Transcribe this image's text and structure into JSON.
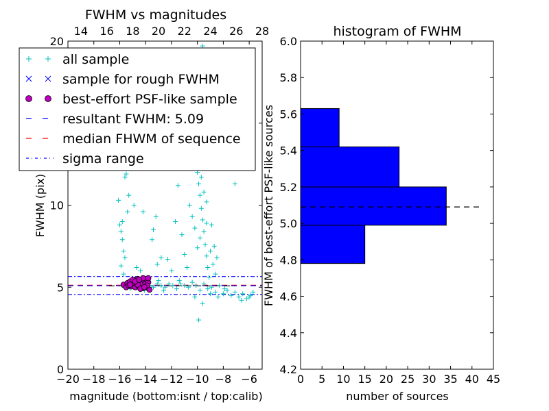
{
  "chart_data": [
    {
      "type": "scatter",
      "title": "FWHM vs magnitudes",
      "xlabel": "magnitude (bottom:isnt / top:calib)",
      "ylabel": "FWHM (pix)",
      "xlim": [
        -20,
        -5
      ],
      "ylim": [
        0,
        20
      ],
      "top_xlim": [
        13,
        28
      ],
      "x_ticks": [
        "−20",
        "−18",
        "−16",
        "−14",
        "−12",
        "−10",
        "−8",
        "−6"
      ],
      "x_tick_values": [
        -20,
        -18,
        -16,
        -14,
        -12,
        -10,
        -8,
        -6
      ],
      "top_ticks": [
        "14",
        "16",
        "18",
        "20",
        "22",
        "24",
        "26",
        "28"
      ],
      "top_tick_values": [
        14,
        16,
        18,
        20,
        22,
        24,
        26,
        28
      ],
      "y_ticks": [
        "0",
        "5",
        "10",
        "15",
        "20"
      ],
      "y_tick_values": [
        0,
        5,
        10,
        15,
        20
      ],
      "resultant_fwhm": 5.09,
      "median_fwhm": 5.12,
      "sigma_range": [
        4.55,
        5.65
      ],
      "legend": [
        {
          "label": "all sample",
          "marker": "plus",
          "color": "#00bfbf"
        },
        {
          "label": "sample for rough FWHM",
          "marker": "x",
          "color": "#0000ff"
        },
        {
          "label": "best-effort PSF-like sample",
          "marker": "circle",
          "color": "#bf00bf"
        },
        {
          "label": "resultant FWHM: 5.09",
          "marker": "dash",
          "color": "#0000ff"
        },
        {
          "label": "median FHWM of sequence",
          "marker": "dash",
          "color": "#ff0000"
        },
        {
          "label": "sigma range",
          "marker": "dashdot",
          "color": "#0000ff"
        }
      ],
      "series": [
        {
          "name": "all sample",
          "points": [
            [
              -15.8,
              5.1
            ],
            [
              -15.5,
              5.0
            ],
            [
              -15.2,
              5.3
            ],
            [
              -14.9,
              5.1
            ],
            [
              -14.6,
              5.2
            ],
            [
              -14.3,
              5.0
            ],
            [
              -14.0,
              5.2
            ],
            [
              -13.7,
              5.1
            ],
            [
              -13.4,
              5.0
            ],
            [
              -13.1,
              5.2
            ],
            [
              -12.8,
              5.1
            ],
            [
              -12.5,
              5.0
            ],
            [
              -12.2,
              5.2
            ],
            [
              -11.9,
              5.1
            ],
            [
              -11.6,
              4.9
            ],
            [
              -11.3,
              5.2
            ],
            [
              -11.0,
              5.1
            ],
            [
              -10.7,
              5.0
            ],
            [
              -10.4,
              5.3
            ],
            [
              -10.1,
              5.1
            ],
            [
              -9.8,
              4.8
            ],
            [
              -9.5,
              5.2
            ],
            [
              -9.2,
              4.9
            ],
            [
              -8.9,
              5.0
            ],
            [
              -8.6,
              4.7
            ],
            [
              -8.3,
              5.1
            ],
            [
              -8.0,
              4.6
            ],
            [
              -7.7,
              4.8
            ],
            [
              -7.4,
              4.5
            ],
            [
              -7.1,
              4.7
            ],
            [
              -6.8,
              4.4
            ],
            [
              -6.5,
              4.6
            ],
            [
              -6.2,
              4.3
            ],
            [
              -5.9,
              4.5
            ],
            [
              -16.0,
              8.8
            ],
            [
              -15.9,
              8.4
            ],
            [
              -15.8,
              7.9
            ],
            [
              -15.7,
              7.2
            ],
            [
              -15.6,
              6.8
            ],
            [
              -15.9,
              6.3
            ],
            [
              -15.7,
              5.8
            ],
            [
              -15.8,
              9.0
            ],
            [
              -16.1,
              10.3
            ],
            [
              -15.6,
              11.7
            ],
            [
              -15.5,
              11.9
            ],
            [
              -15.3,
              10.6
            ],
            [
              -15.4,
              9.6
            ],
            [
              -14.9,
              10.0
            ],
            [
              -14.2,
              9.6
            ],
            [
              -13.2,
              9.3
            ],
            [
              -13.4,
              8.5
            ],
            [
              -14.7,
              6.2
            ],
            [
              -14.4,
              6.0
            ],
            [
              -13.1,
              6.4
            ],
            [
              -12.8,
              6.8
            ],
            [
              -11.5,
              11.2
            ],
            [
              -11.7,
              9.0
            ],
            [
              -11.2,
              8.2
            ],
            [
              -11.0,
              7.0
            ],
            [
              -10.8,
              6.2
            ],
            [
              -10.6,
              10.0
            ],
            [
              -10.4,
              9.3
            ],
            [
              -10.2,
              8.6
            ],
            [
              -10.0,
              12.0
            ],
            [
              -9.9,
              11.3
            ],
            [
              -9.8,
              10.6
            ],
            [
              -9.7,
              9.8
            ],
            [
              -9.6,
              9.1
            ],
            [
              -9.5,
              8.4
            ],
            [
              -9.4,
              7.6
            ],
            [
              -9.3,
              6.9
            ],
            [
              -9.2,
              6.2
            ],
            [
              -9.1,
              5.6
            ],
            [
              -10.1,
              13.2
            ],
            [
              -9.9,
              12.8
            ],
            [
              -9.7,
              11.7
            ],
            [
              -9.5,
              10.8
            ],
            [
              -9.6,
              12.4
            ],
            [
              -9.3,
              10.2
            ],
            [
              -9.8,
              8.0
            ],
            [
              -9.0,
              7.2
            ],
            [
              -8.8,
              6.4
            ],
            [
              -8.6,
              5.8
            ],
            [
              -8.9,
              8.8
            ],
            [
              -8.5,
              6.8
            ],
            [
              -9.6,
              19.7
            ],
            [
              -9.4,
              19.0
            ],
            [
              -10.2,
              4.4
            ],
            [
              -9.9,
              3.0
            ],
            [
              -9.6,
              4.0
            ],
            [
              -7.1,
              11.3
            ],
            [
              -10.0,
              7.4
            ],
            [
              -9.3,
              8.9
            ],
            [
              -8.7,
              7.5
            ],
            [
              -12.0,
              6.0
            ],
            [
              -12.3,
              6.7
            ],
            [
              -13.5,
              7.9
            ],
            [
              -15.2,
              4.9
            ],
            [
              -14.1,
              4.8
            ],
            [
              -13.0,
              5.4
            ],
            [
              -12.6,
              4.8
            ],
            [
              -11.4,
              5.4
            ],
            [
              -9.0,
              4.6
            ],
            [
              -8.4,
              4.4
            ],
            [
              -7.9,
              4.9
            ],
            [
              -6.6,
              4.2
            ],
            [
              -6.0,
              4.4
            ],
            [
              -5.7,
              4.7
            ]
          ]
        },
        {
          "name": "best-effort PSF-like sample",
          "points": [
            [
              -15.7,
              5.15
            ],
            [
              -15.5,
              5.0
            ],
            [
              -15.4,
              5.25
            ],
            [
              -15.3,
              5.1
            ],
            [
              -15.2,
              5.35
            ],
            [
              -15.1,
              5.05
            ],
            [
              -15.0,
              5.25
            ],
            [
              -14.9,
              5.45
            ],
            [
              -14.8,
              5.0
            ],
            [
              -14.7,
              5.2
            ],
            [
              -14.6,
              5.5
            ],
            [
              -14.5,
              5.05
            ],
            [
              -14.4,
              5.3
            ],
            [
              -14.3,
              5.15
            ],
            [
              -14.2,
              4.95
            ],
            [
              -14.1,
              5.4
            ],
            [
              -14.0,
              5.2
            ],
            [
              -13.9,
              5.0
            ],
            [
              -13.8,
              5.3
            ],
            [
              -13.8,
              5.55
            ],
            [
              -13.7,
              4.85
            ],
            [
              -14.6,
              5.15
            ],
            [
              -14.4,
              4.9
            ],
            [
              -15.0,
              5.45
            ],
            [
              -14.2,
              5.55
            ],
            [
              -13.9,
              5.1
            ],
            [
              -15.2,
              5.15
            ],
            [
              -14.8,
              5.35
            ],
            [
              -14.5,
              5.45
            ],
            [
              -14.1,
              5.0
            ]
          ]
        }
      ]
    },
    {
      "type": "bar",
      "orientation": "horizontal",
      "title": "histogram of FWHM",
      "xlabel": "number of sources",
      "ylabel": "FWHM of best-effort PSF-like sources",
      "xlim": [
        0,
        45
      ],
      "ylim": [
        4.2,
        6.0
      ],
      "x_ticks": [
        "0",
        "5",
        "10",
        "15",
        "20",
        "25",
        "30",
        "35",
        "40",
        "45"
      ],
      "x_tick_values": [
        0,
        5,
        10,
        15,
        20,
        25,
        30,
        35,
        40,
        45
      ],
      "y_ticks": [
        "4.2",
        "4.4",
        "4.6",
        "4.8",
        "5.0",
        "5.2",
        "5.4",
        "5.6",
        "5.8",
        "6.0"
      ],
      "y_tick_values": [
        4.2,
        4.4,
        4.6,
        4.8,
        5.0,
        5.2,
        5.4,
        5.6,
        5.8,
        6.0
      ],
      "bins": [
        {
          "low": 4.78,
          "high": 4.99,
          "count": 15
        },
        {
          "low": 4.99,
          "high": 5.2,
          "count": 34
        },
        {
          "low": 5.2,
          "high": 5.42,
          "count": 23
        },
        {
          "low": 5.42,
          "high": 5.63,
          "count": 9
        }
      ],
      "resultant_fwhm": 5.09,
      "color": "#0000ff"
    }
  ]
}
